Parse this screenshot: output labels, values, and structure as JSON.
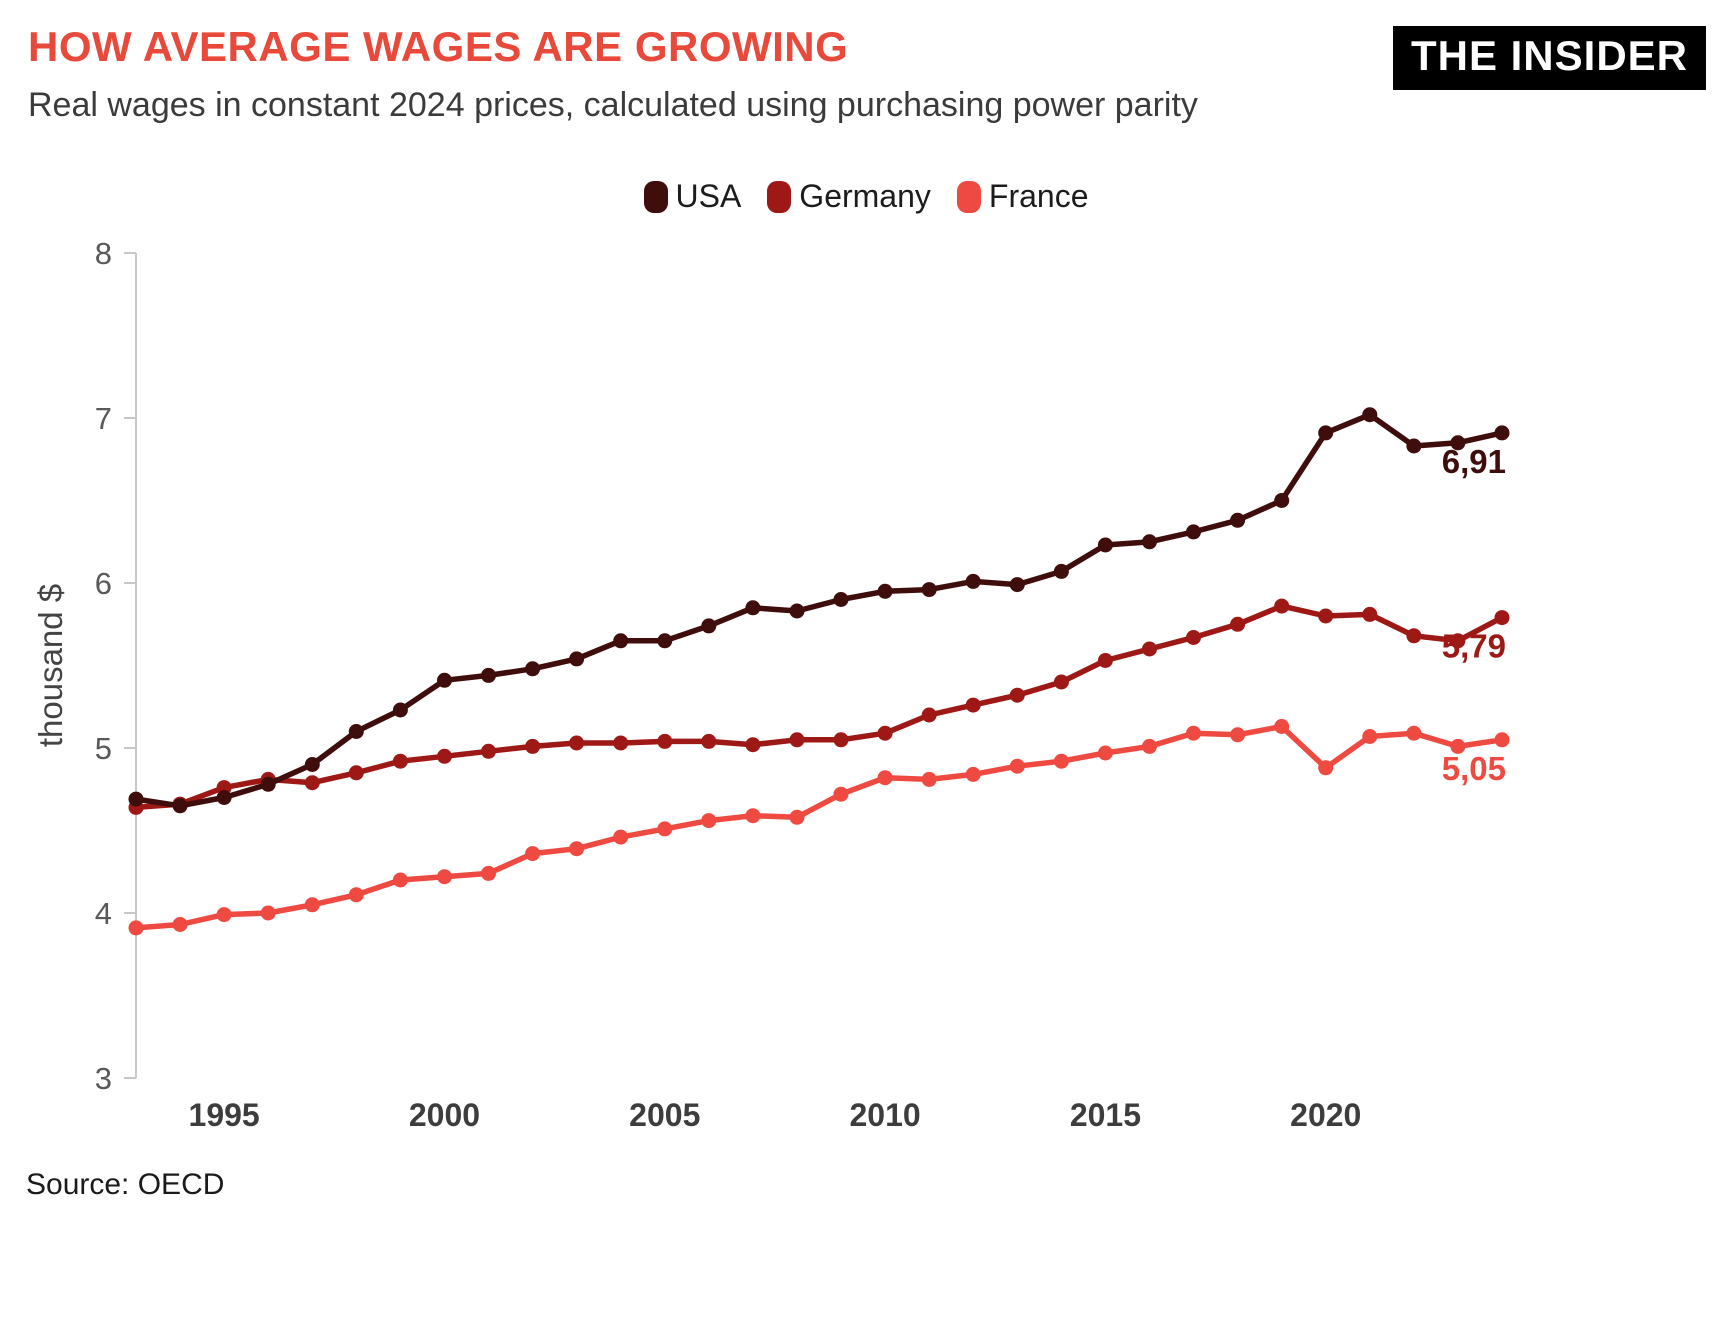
{
  "header": {
    "title": "HOW AVERAGE WAGES ARE GROWING",
    "subtitle": "Real wages in constant 2024 prices, calculated using purchasing power parity",
    "logo": "THE INSIDER"
  },
  "footer": {
    "source": "Source: OECD"
  },
  "colors": {
    "title": "#e8493b",
    "usa": "#3f0d0c",
    "germany": "#9e1915",
    "france": "#ef4a41",
    "axis": "#c8c8c8",
    "tick_label": "#595959",
    "x_tick_label": "#3d3d3d"
  },
  "chart_data": {
    "type": "line",
    "title": "HOW AVERAGE WAGES ARE GROWING",
    "subtitle": "Real wages in constant 2024 prices, calculated using purchasing power parity",
    "ylabel": "thousand $",
    "xlabel": "",
    "x_range": [
      1993,
      2024
    ],
    "x_ticks": [
      1995,
      2000,
      2005,
      2010,
      2015,
      2020
    ],
    "y_ticks": [
      3,
      4,
      5,
      6,
      7,
      8
    ],
    "ylim": [
      3,
      8
    ],
    "grid": false,
    "legend_position": "top-center",
    "series": [
      {
        "name": "USA",
        "color": "#3f0d0c",
        "end_label": "6,91",
        "values": [
          4.69,
          4.65,
          4.7,
          4.78,
          4.9,
          5.1,
          5.23,
          5.41,
          5.44,
          5.48,
          5.54,
          5.65,
          5.65,
          5.74,
          5.85,
          5.83,
          5.9,
          5.95,
          5.96,
          6.01,
          5.99,
          6.07,
          6.23,
          6.25,
          6.31,
          6.38,
          6.5,
          6.91,
          7.02,
          6.83,
          6.85,
          6.91
        ]
      },
      {
        "name": "Germany",
        "color": "#9e1915",
        "end_label": "5,79",
        "values": [
          4.64,
          4.66,
          4.76,
          4.81,
          4.79,
          4.85,
          4.92,
          4.95,
          4.98,
          5.01,
          5.03,
          5.03,
          5.04,
          5.04,
          5.02,
          5.05,
          5.05,
          5.09,
          5.2,
          5.26,
          5.32,
          5.4,
          5.53,
          5.6,
          5.67,
          5.75,
          5.86,
          5.8,
          5.81,
          5.68,
          5.65,
          5.79
        ]
      },
      {
        "name": "France",
        "color": "#ef4a41",
        "end_label": "5,05",
        "values": [
          3.91,
          3.93,
          3.99,
          4.0,
          4.05,
          4.11,
          4.2,
          4.22,
          4.24,
          4.36,
          4.39,
          4.46,
          4.51,
          4.56,
          4.59,
          4.58,
          4.72,
          4.82,
          4.81,
          4.84,
          4.89,
          4.92,
          4.97,
          5.01,
          5.09,
          5.08,
          5.13,
          4.88,
          5.07,
          5.09,
          5.01,
          5.05
        ]
      }
    ]
  }
}
